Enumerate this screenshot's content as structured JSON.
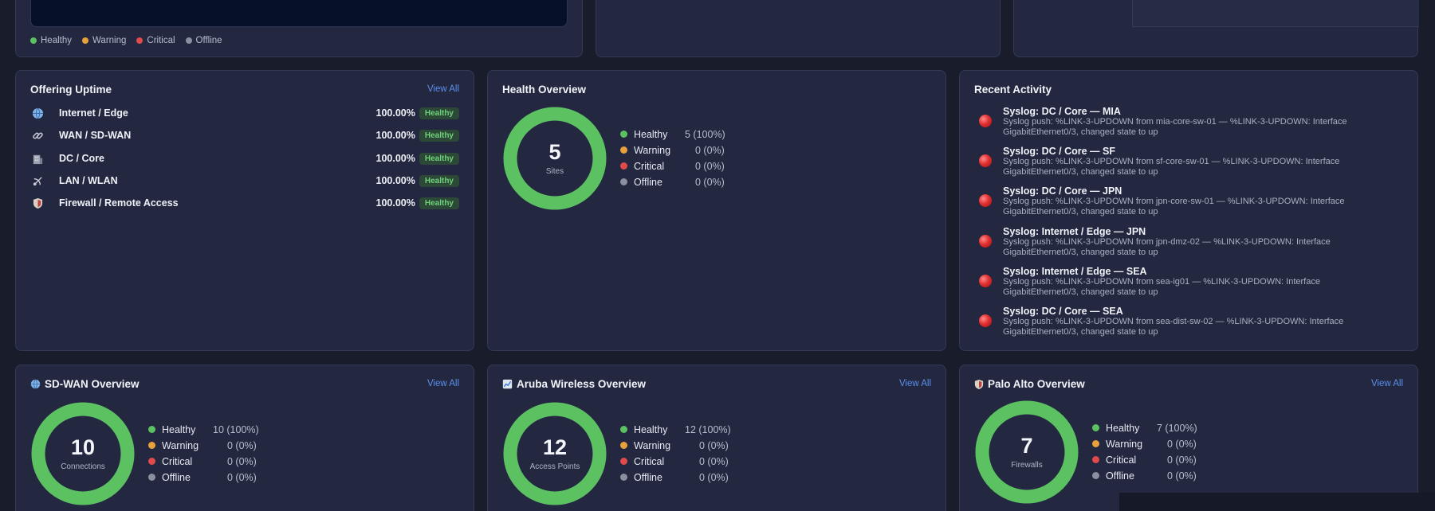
{
  "colors": {
    "healthy": "#5cc261",
    "warning": "#e9a23b",
    "critical": "#e04a4a",
    "offline": "#8b90a0",
    "accent": "#5b8ff0"
  },
  "status_legend": {
    "healthy": "Healthy",
    "warning": "Warning",
    "critical": "Critical",
    "offline": "Offline"
  },
  "offering_uptime": {
    "title": "Offering Uptime",
    "view_all": "View All",
    "items": [
      {
        "icon": "globe-icon",
        "name": "Internet / Edge",
        "pct": "100.00%",
        "status": "Healthy"
      },
      {
        "icon": "link-icon",
        "name": "WAN / SD-WAN",
        "pct": "100.00%",
        "status": "Healthy"
      },
      {
        "icon": "building-icon",
        "name": "DC / Core",
        "pct": "100.00%",
        "status": "Healthy"
      },
      {
        "icon": "satellite-icon",
        "name": "LAN / WLAN",
        "pct": "100.00%",
        "status": "Healthy"
      },
      {
        "icon": "shield-icon",
        "name": "Firewall / Remote Access",
        "pct": "100.00%",
        "status": "Healthy"
      }
    ]
  },
  "health_overview": {
    "title": "Health Overview",
    "count": "5",
    "unit": "Sites",
    "healthy_fraction": 1.0,
    "rows": [
      {
        "label": "Healthy",
        "value": "5 (100%)"
      },
      {
        "label": "Warning",
        "value": "0 (0%)"
      },
      {
        "label": "Critical",
        "value": "0 (0%)"
      },
      {
        "label": "Offline",
        "value": "0 (0%)"
      }
    ]
  },
  "recent_activity": {
    "title": "Recent Activity",
    "items": [
      {
        "title": "Syslog: DC / Core — MIA",
        "desc": "Syslog push: %LINK-3-UPDOWN from mia-core-sw-01 — %LINK-3-UPDOWN: Interface GigabitEthernet0/3, changed state to up"
      },
      {
        "title": "Syslog: DC / Core — SF",
        "desc": "Syslog push: %LINK-3-UPDOWN from sf-core-sw-01 — %LINK-3-UPDOWN: Interface GigabitEthernet0/3, changed state to up"
      },
      {
        "title": "Syslog: DC / Core — JPN",
        "desc": "Syslog push: %LINK-3-UPDOWN from jpn-core-sw-01 — %LINK-3-UPDOWN: Interface GigabitEthernet0/3, changed state to up"
      },
      {
        "title": "Syslog: Internet / Edge — JPN",
        "desc": "Syslog push: %LINK-3-UPDOWN from jpn-dmz-02 — %LINK-3-UPDOWN: Interface GigabitEthernet0/3, changed state to up"
      },
      {
        "title": "Syslog: Internet / Edge — SEA",
        "desc": "Syslog push: %LINK-3-UPDOWN from sea-ig01 — %LINK-3-UPDOWN: Interface GigabitEthernet0/3, changed state to up"
      },
      {
        "title": "Syslog: DC / Core — SEA",
        "desc": "Syslog push: %LINK-3-UPDOWN from sea-dist-sw-02 — %LINK-3-UPDOWN: Interface GigabitEthernet0/3, changed state to up"
      }
    ]
  },
  "sdwan": {
    "title": "SD-WAN Overview",
    "icon": "globe-icon",
    "view_all": "View All",
    "count": "10",
    "unit": "Connections",
    "healthy_fraction": 1.0,
    "rows": [
      {
        "label": "Healthy",
        "value": "10 (100%)"
      },
      {
        "label": "Warning",
        "value": "0 (0%)"
      },
      {
        "label": "Critical",
        "value": "0 (0%)"
      },
      {
        "label": "Offline",
        "value": "0 (0%)"
      }
    ]
  },
  "aruba": {
    "title": "Aruba Wireless Overview",
    "icon": "chart-icon",
    "view_all": "View All",
    "count": "12",
    "unit": "Access Points",
    "healthy_fraction": 1.0,
    "rows": [
      {
        "label": "Healthy",
        "value": "12 (100%)"
      },
      {
        "label": "Warning",
        "value": "0 (0%)"
      },
      {
        "label": "Critical",
        "value": "0 (0%)"
      },
      {
        "label": "Offline",
        "value": "0 (0%)"
      }
    ]
  },
  "paloalto": {
    "title": "Palo Alto Overview",
    "icon": "shield-icon",
    "view_all": "View All",
    "count": "7",
    "unit": "Firewalls",
    "healthy_fraction": 1.0,
    "rows": [
      {
        "label": "Healthy",
        "value": "7 (100%)"
      },
      {
        "label": "Warning",
        "value": "0 (0%)"
      },
      {
        "label": "Critical",
        "value": "0 (0%)"
      },
      {
        "label": "Offline",
        "value": "0 (0%)"
      }
    ]
  }
}
